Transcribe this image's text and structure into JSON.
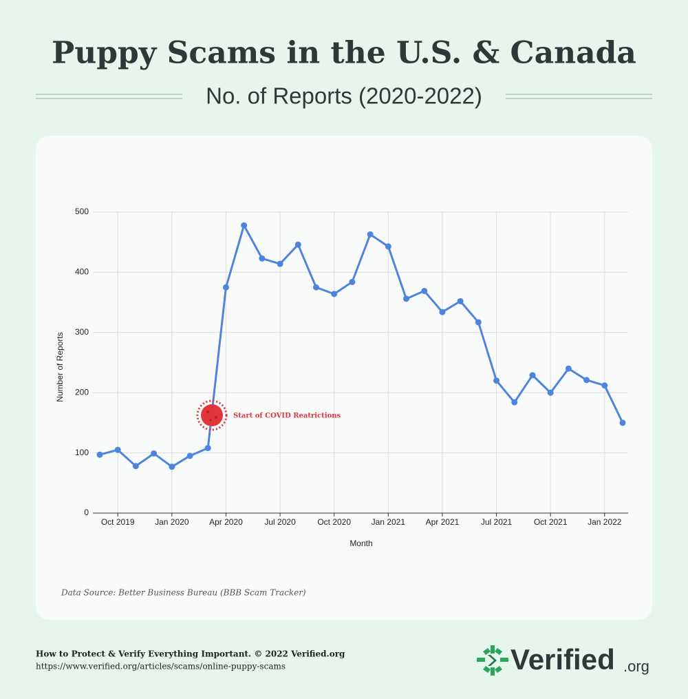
{
  "chart_data": {
    "type": "line",
    "title": "Puppy Scams in the U.S. & Canada",
    "subtitle": "No. of Reports (2020-2022)",
    "x_label": "Month",
    "y_label": "Number of Reports",
    "annotation": "Start of COVID Reatrictions",
    "source": "Data Source: Better Business Bureau (BBB Scam Tracker)",
    "x": [
      "2019-09",
      "2019-10",
      "2019-11",
      "2019-12",
      "2020-01",
      "2020-02",
      "2020-03",
      "2020-04",
      "2020-05",
      "2020-06",
      "2020-07",
      "2020-08",
      "2020-09",
      "2020-10",
      "2020-11",
      "2020-12",
      "2021-01",
      "2021-02",
      "2021-03",
      "2021-04",
      "2021-05",
      "2021-06",
      "2021-07",
      "2021-08",
      "2021-09",
      "2021-10",
      "2021-11",
      "2021-12",
      "2022-01",
      "2022-02"
    ],
    "series": [
      {
        "name": "Number of Reports",
        "color": "#4f84de",
        "values": [
          97,
          105,
          78,
          99,
          77,
          95,
          108,
          375,
          478,
          423,
          414,
          446,
          375,
          364,
          384,
          463,
          443,
          356,
          369,
          334,
          352,
          317,
          220,
          184,
          229,
          200,
          240,
          221,
          212,
          150
        ]
      }
    ],
    "xticks": [
      {
        "value": "2019-10",
        "label": "Oct 2019"
      },
      {
        "value": "2020-01",
        "label": "Jan 2020"
      },
      {
        "value": "2020-04",
        "label": "Apr 2020"
      },
      {
        "value": "2020-07",
        "label": "Jul 2020"
      },
      {
        "value": "2020-10",
        "label": "Oct 2020"
      },
      {
        "value": "2021-01",
        "label": "Jan 2021"
      },
      {
        "value": "2021-04",
        "label": "Apr 2021"
      },
      {
        "value": "2021-07",
        "label": "Jul 2021"
      },
      {
        "value": "2021-10",
        "label": "Oct 2021"
      },
      {
        "value": "2022-01",
        "label": "Jan 2022"
      }
    ],
    "ylim": [
      0,
      500
    ],
    "yticks": [
      0,
      100,
      200,
      300,
      400,
      500
    ],
    "grid": true
  },
  "footer": {
    "line1": "How to Protect & Verify Everything Important. © 2022 Verified.org",
    "line2": "https://www.verified.org/articles/scams/online-puppy-scams",
    "logo": "Verified",
    "logo_suffix": ".org"
  }
}
